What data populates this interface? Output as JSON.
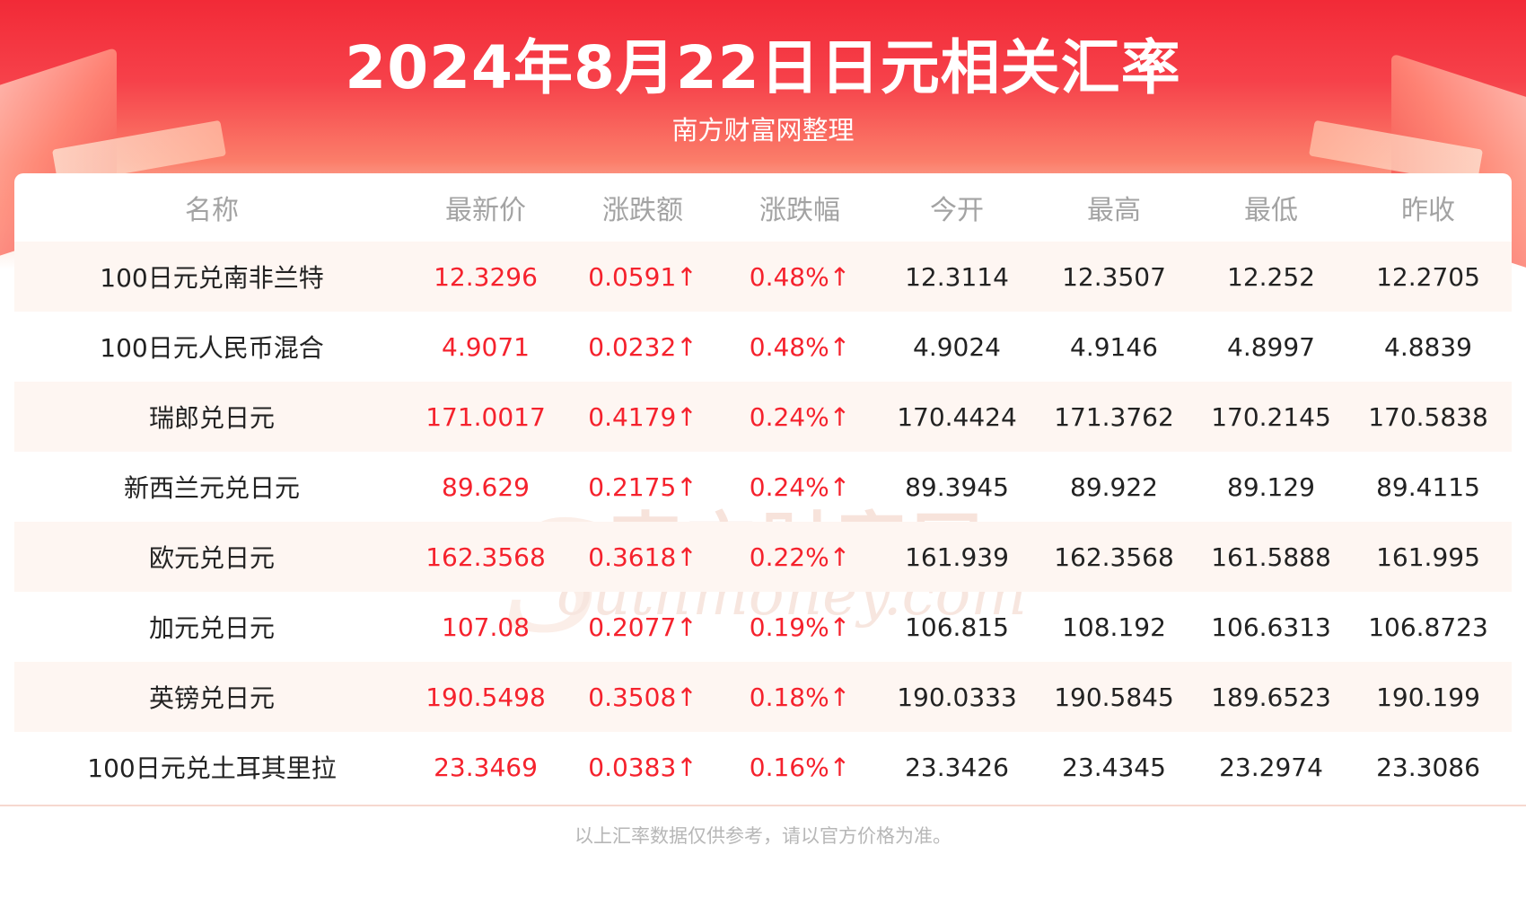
{
  "header": {
    "title": "2024年8月22日日元相关汇率",
    "subtitle": "南方财富网整理"
  },
  "table": {
    "columns": [
      "名称",
      "最新价",
      "涨跌额",
      "涨跌幅",
      "今开",
      "最高",
      "最低",
      "昨收"
    ],
    "rows": [
      [
        "100日元兑南非兰特",
        "12.3296",
        "0.0591↑",
        "0.48%↑",
        "12.3114",
        "12.3507",
        "12.252",
        "12.2705"
      ],
      [
        "100日元人民币混合",
        "4.9071",
        "0.0232↑",
        "0.48%↑",
        "4.9024",
        "4.9146",
        "4.8997",
        "4.8839"
      ],
      [
        "瑞郎兑日元",
        "171.0017",
        "0.4179↑",
        "0.24%↑",
        "170.4424",
        "171.3762",
        "170.2145",
        "170.5838"
      ],
      [
        "新西兰元兑日元",
        "89.629",
        "0.2175↑",
        "0.24%↑",
        "89.3945",
        "89.922",
        "89.129",
        "89.4115"
      ],
      [
        "欧元兑日元",
        "162.3568",
        "0.3618↑",
        "0.22%↑",
        "161.939",
        "162.3568",
        "161.5888",
        "161.995"
      ],
      [
        "加元兑日元",
        "107.08",
        "0.2077↑",
        "0.19%↑",
        "106.815",
        "108.192",
        "106.6313",
        "106.8723"
      ],
      [
        "英镑兑日元",
        "190.5498",
        "0.3508↑",
        "0.18%↑",
        "190.0333",
        "190.5845",
        "189.6523",
        "190.199"
      ],
      [
        "100日元兑土耳其里拉",
        "23.3469",
        "0.0383↑",
        "0.16%↑",
        "23.3426",
        "23.4345",
        "23.2974",
        "23.3086"
      ]
    ]
  },
  "watermark": {
    "cn": "南方财富网",
    "en": "outhmoney.com",
    "letter": "S"
  },
  "footer": {
    "note": "以上汇率数据仅供参考，请以官方价格为准。"
  },
  "colors": {
    "brand_red": "#f22a37",
    "up_red": "#f5222d",
    "band": "#fef6f2",
    "header_text": "#a3a3a3"
  }
}
